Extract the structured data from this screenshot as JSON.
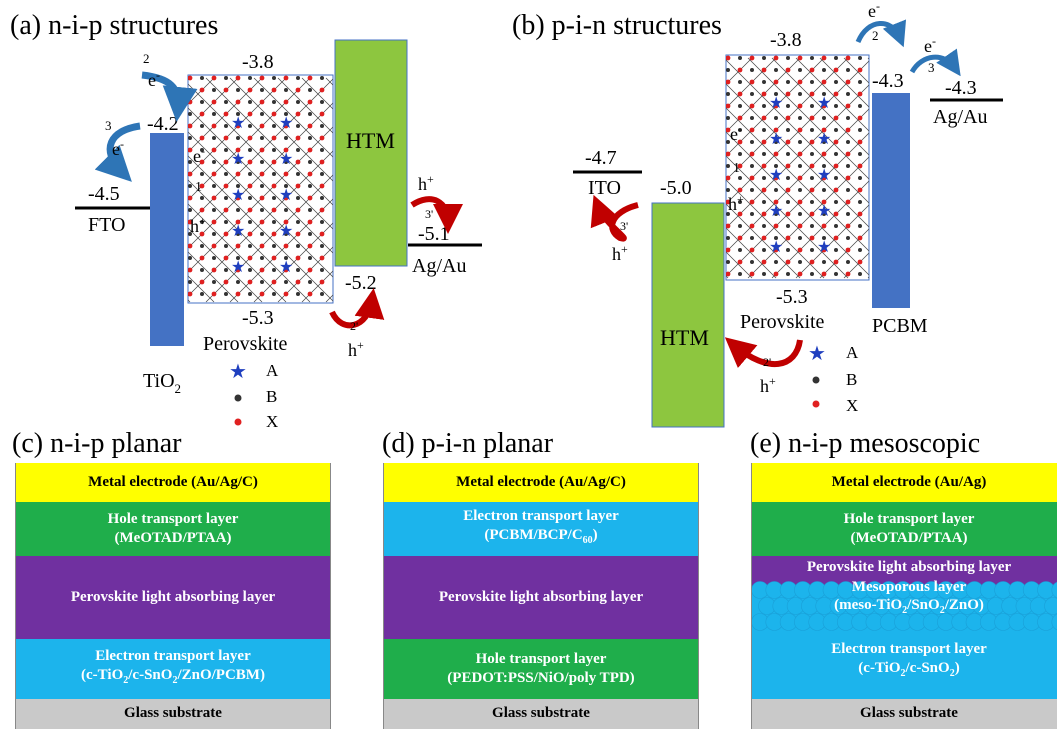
{
  "panel_a": {
    "title": "(a) n-i-p structures",
    "vals": {
      "v38": "-3.8",
      "v42": "-4.2",
      "v45": "-4.5",
      "v51": "-5.1",
      "v52": "-5.2",
      "v53": "-5.3"
    },
    "fto": "FTO",
    "htm": "HTM",
    "agau": "Ag/Au",
    "perovskite": "Perovskite",
    "tio2": "TiO",
    "tio2_sub": "2",
    "e": "e",
    "h": "h",
    "n1": "1",
    "n2": "2",
    "n3": "3",
    "n2p": "2'",
    "n3p": "3'",
    "legend": [
      "A",
      "B",
      "X"
    ]
  },
  "panel_b": {
    "title": "(b) p-i-n structures",
    "vals": {
      "v38": "-3.8",
      "v43a": "-4.3",
      "v43b": "-4.3",
      "v47": "-4.7",
      "v50": "-5.0",
      "v53": "-5.3"
    },
    "ito": "ITO",
    "htm": "HTM",
    "agau": "Ag/Au",
    "perovskite": "Perovskite",
    "pcbm": "PCBM",
    "e": "e",
    "h": "h",
    "n1": "1",
    "n2": "2",
    "n3": "3",
    "n2p": "2'",
    "n3p": "3'",
    "legend": [
      "A",
      "B",
      "X"
    ]
  },
  "panel_c": {
    "title": "(c) n-i-p planar",
    "metal": "Metal electrode (Au/Ag/C)",
    "htl1": "Hole transport layer",
    "htl2": "(MeOTAD/PTAA)",
    "pero": "Perovskite light absorbing layer",
    "etl1": "Electron transport layer",
    "etl2a": "(c-TiO",
    "etl2s1": "2",
    "etl2b": "/c-SnO",
    "etl2s2": "2",
    "etl2c": "/ZnO/PCBM)",
    "glass": "Glass substrate"
  },
  "panel_d": {
    "title": "(d) p-i-n planar",
    "metal": "Metal electrode (Au/Ag/C)",
    "etl1": "Electron transport layer",
    "etl2a": "(PCBM/BCP/C",
    "etl2s": "60",
    "etl2b": ")",
    "pero": "Perovskite light absorbing layer",
    "htl1": "Hole transport layer",
    "htl2": "(PEDOT:PSS/NiO/poly TPD)",
    "glass": "Glass substrate"
  },
  "panel_e": {
    "title": "(e) n-i-p mesoscopic",
    "metal": "Metal electrode (Au/Ag)",
    "htl1": "Hole transport layer",
    "htl2": "(MeOTAD/PTAA)",
    "pero": "Perovskite light absorbing layer",
    "meso1": "Mesoporous layer",
    "meso2a": "(meso-TiO",
    "meso2s1": "2",
    "meso2b": "/SnO",
    "meso2s2": "2",
    "meso2c": "/ZnO)",
    "etl1": "Electron transport layer",
    "etl2a": "(c-TiO",
    "etl2s1": "2",
    "etl2b": "/c-SnO",
    "etl2s2": "2",
    "etl2c": ")",
    "glass": "Glass substrate"
  },
  "colors": {
    "tio2_bar": "#4472c4",
    "htm_bar": "#8dc63f",
    "arrow_e": "#2e75b6",
    "arrow_h": "#c00000",
    "star": "#1f3fbf",
    "dot_x": "#e02020",
    "dot_b": "#333333"
  }
}
